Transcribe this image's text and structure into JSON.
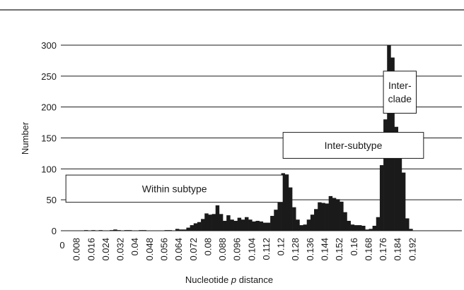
{
  "chart_data": {
    "type": "bar",
    "xlabel_prefix": "Nucleotide ",
    "xlabel_italic": "p",
    "xlabel_suffix": " distance",
    "ylabel": "Number",
    "ylim": [
      0,
      300
    ],
    "yticks": [
      0,
      50,
      100,
      150,
      200,
      250,
      300
    ],
    "grid": true,
    "bin_width": 0.002,
    "x_first_bin": 0.002,
    "xtick_labels": [
      "0",
      "0.008",
      "0.016",
      "0.024",
      "0.032",
      "0.04",
      "0.048",
      "0.056",
      "0.064",
      "0.072",
      "0.08",
      "0.088",
      "0.096",
      "0.104",
      "0.112",
      "0.12",
      "0.128",
      "0.136",
      "0.144",
      "0.152",
      "0.16",
      "0.168",
      "0.176",
      "0.184",
      "0.192"
    ],
    "values": [
      0,
      0,
      0,
      0,
      0,
      0,
      1,
      0,
      1,
      0,
      1,
      0,
      0,
      1,
      2,
      1,
      0,
      1,
      1,
      0,
      0,
      1,
      1,
      0,
      0,
      0,
      0,
      0,
      1,
      1,
      0,
      3,
      2,
      2,
      5,
      9,
      12,
      14,
      19,
      28,
      26,
      27,
      41,
      27,
      16,
      25,
      18,
      16,
      21,
      18,
      22,
      18,
      15,
      16,
      15,
      13,
      13,
      24,
      34,
      46,
      93,
      91,
      70,
      38,
      18,
      9,
      10,
      18,
      26,
      35,
      46,
      45,
      44,
      56,
      53,
      51,
      47,
      30,
      16,
      10,
      9,
      9,
      8,
      2,
      3,
      8,
      22,
      106,
      180,
      300,
      280,
      168,
      140,
      94,
      20,
      3
    ],
    "annotations": [
      {
        "text": "Within subtype",
        "lines": [
          "Within subtype"
        ],
        "x_start": 0.002,
        "x_end": 0.121,
        "y_low": 46,
        "y_high": 90
      },
      {
        "text": "Inter-subtype",
        "lines": [
          "Inter-subtype"
        ],
        "x_start": 0.121,
        "x_end": 0.198,
        "y_low": 117,
        "y_high": 159
      },
      {
        "text": "Inter-clade",
        "lines": [
          "Inter-",
          "clade"
        ],
        "x_start": 0.176,
        "x_end": 0.194,
        "y_low": 190,
        "y_high": 258
      }
    ],
    "colors": {
      "bars": "#1a1a1a",
      "grid": "#1a1a1a",
      "box_fill": "#ffffff",
      "box_stroke": "#1a1a1a"
    }
  }
}
